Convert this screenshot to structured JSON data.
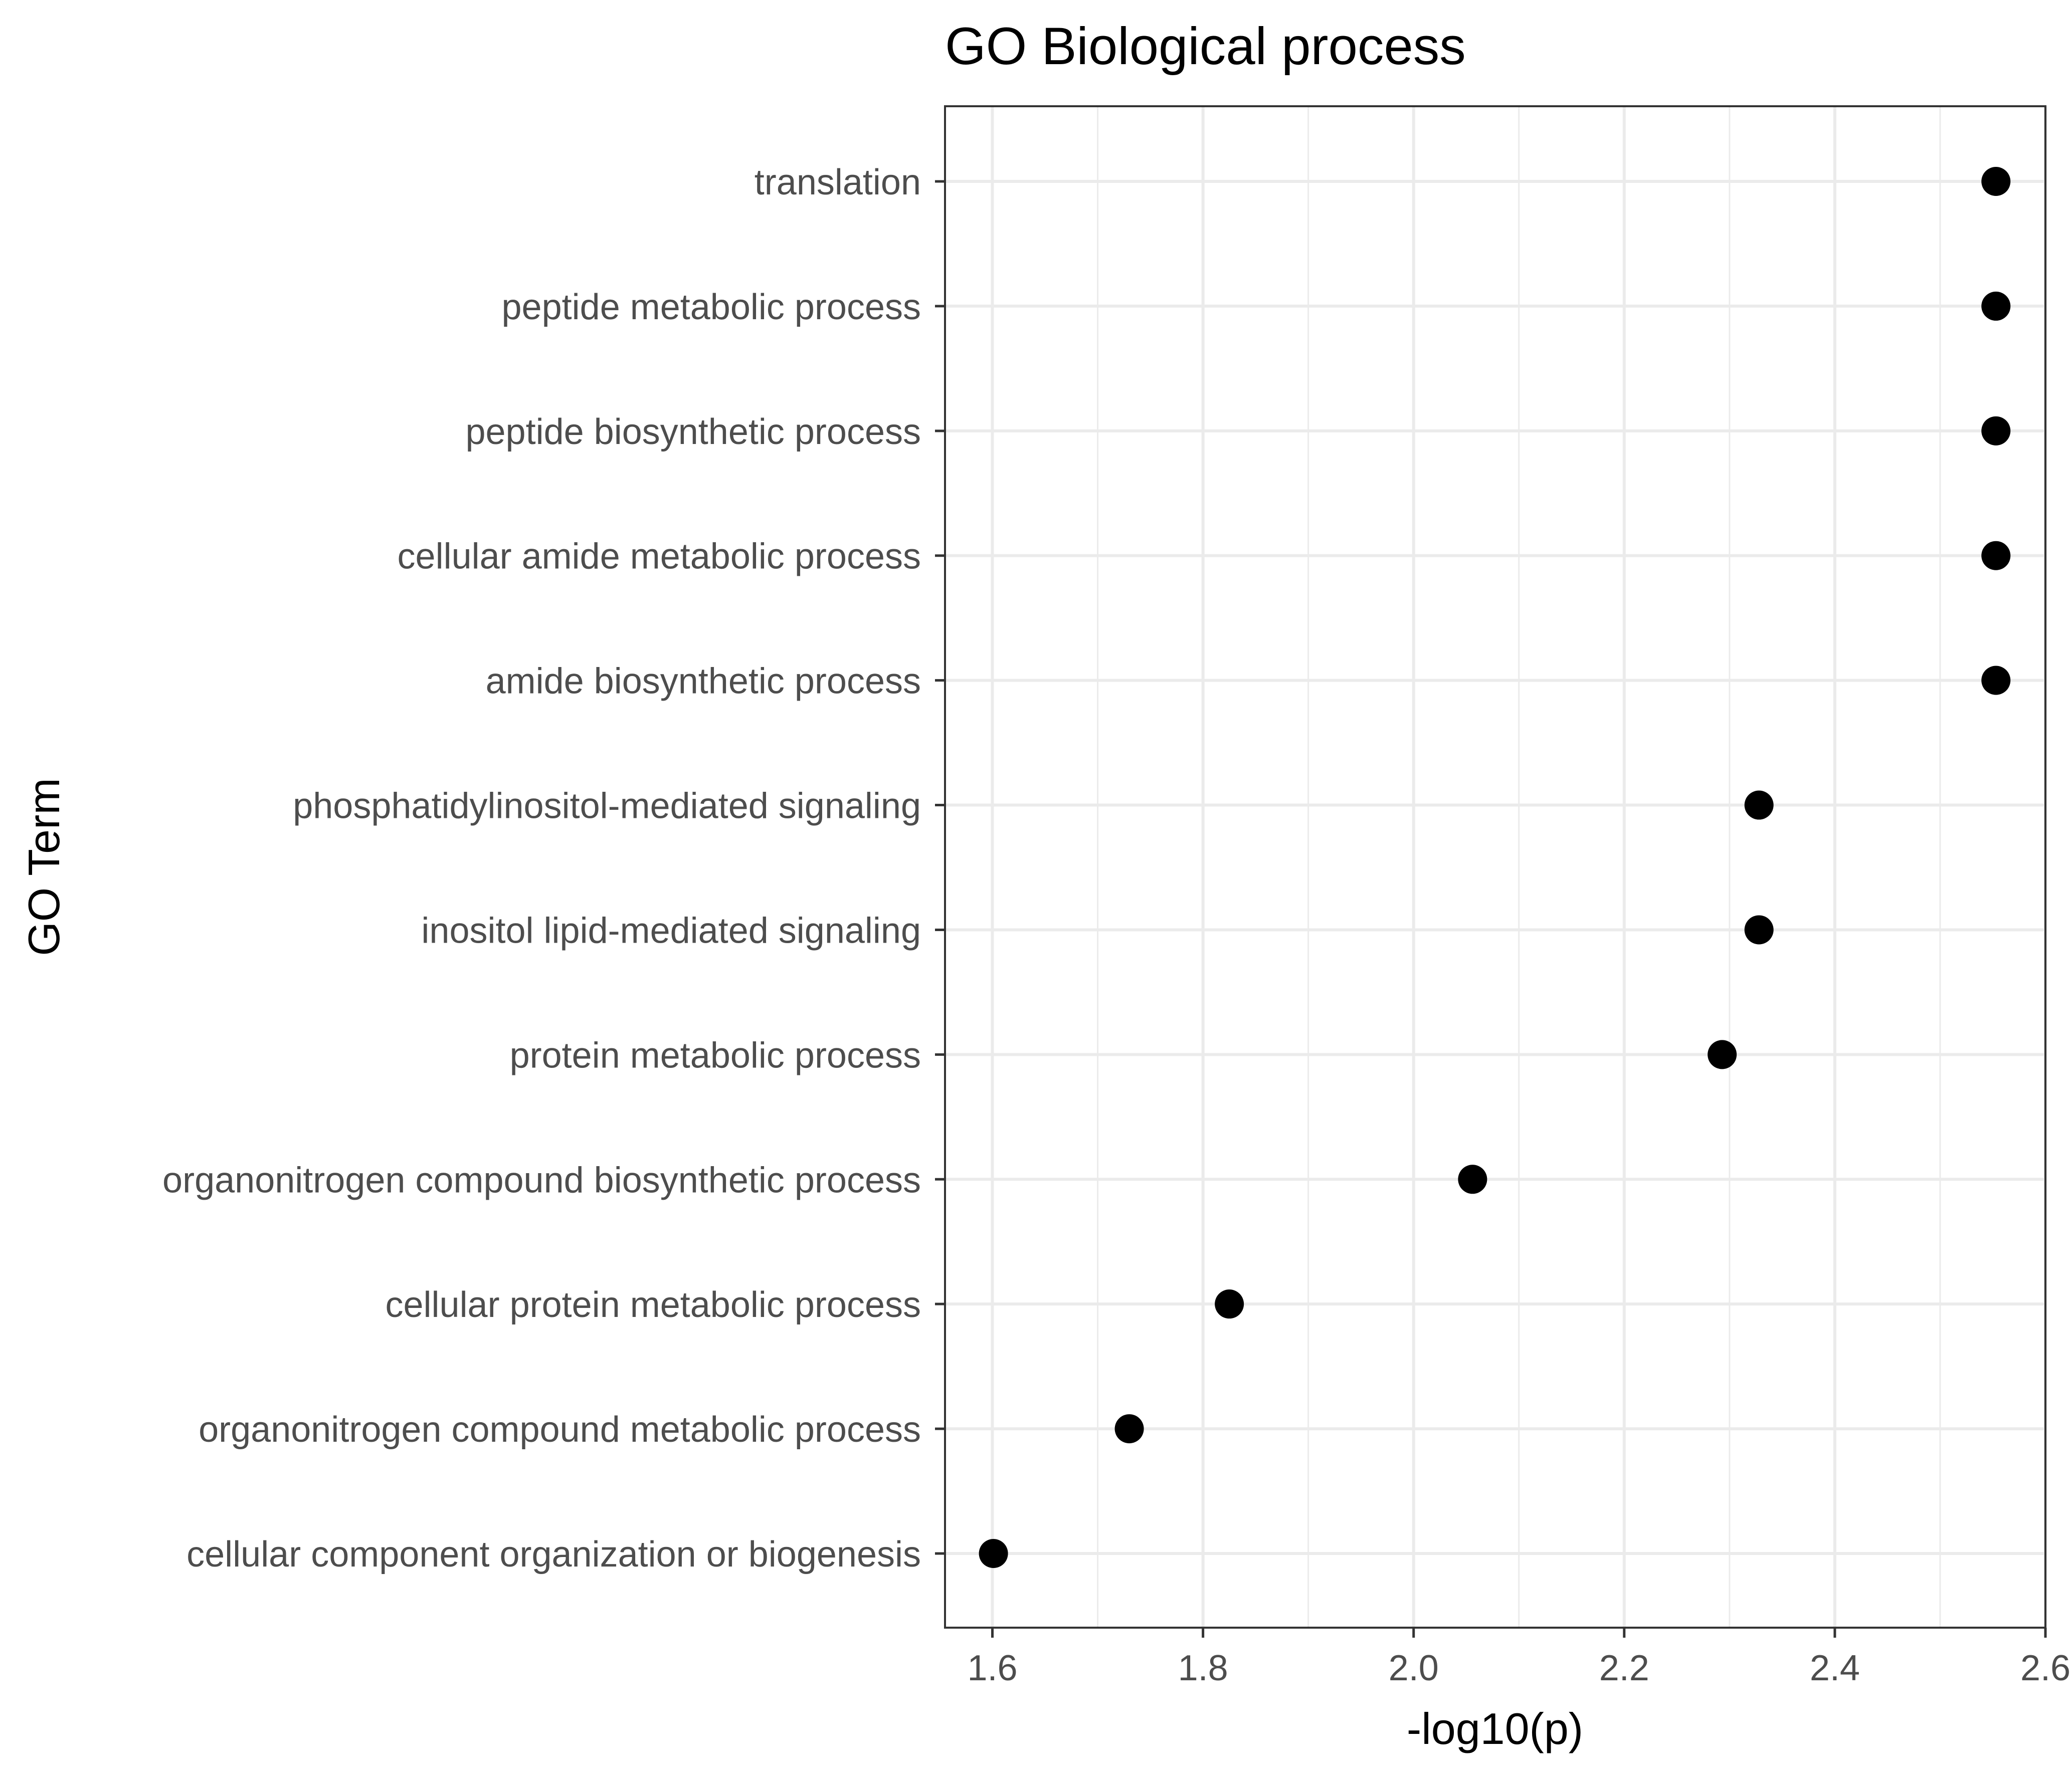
{
  "chart_data": {
    "type": "scatter",
    "title": "GO Biological process",
    "xlabel": "-log10(p)",
    "ylabel": "GO Term",
    "xlim": [
      1.555,
      2.6
    ],
    "x_major_ticks": [
      1.6,
      1.8,
      2.0,
      2.2,
      2.4,
      2.6
    ],
    "x_tick_labels": [
      "1.6",
      "1.8",
      "2.0",
      "2.2",
      "2.4",
      "2.6"
    ],
    "x_minor_ticks": [
      1.7,
      1.9,
      2.1,
      2.3,
      2.5
    ],
    "grid": true,
    "legend": "none",
    "point_color": "#000000",
    "grid_color": "#ebebeb",
    "categories": [
      "translation",
      "peptide metabolic process",
      "peptide biosynthetic process",
      "cellular amide metabolic process",
      "amide biosynthetic process",
      "phosphatidylinositol-mediated signaling",
      "inositol lipid-mediated signaling",
      "protein metabolic process",
      "organonitrogen compound biosynthetic process",
      "cellular protein metabolic process",
      "organonitrogen compound metabolic process",
      "cellular component organization or biogenesis"
    ],
    "values": [
      2.553,
      2.553,
      2.553,
      2.553,
      2.553,
      2.328,
      2.328,
      2.293,
      2.056,
      1.825,
      1.73,
      1.601
    ]
  }
}
